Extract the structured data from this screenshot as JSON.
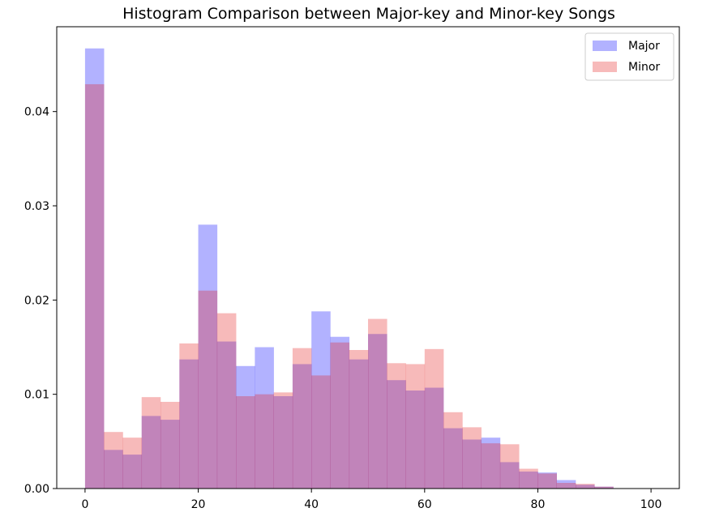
{
  "chart_data": {
    "type": "histogram",
    "title": "Histogram Comparison between Major-key and Minor-key Songs",
    "xlabel": "",
    "ylabel": "",
    "xlim": [
      -5,
      105
    ],
    "ylim": [
      0,
      0.049
    ],
    "x_ticks": [
      0,
      20,
      40,
      60,
      80,
      100
    ],
    "y_ticks": [
      0.0,
      0.01,
      0.02,
      0.03,
      0.04
    ],
    "y_tick_labels": [
      "0.00",
      "0.01",
      "0.02",
      "0.03",
      "0.04"
    ],
    "bin_edges": [
      0,
      3.33,
      6.67,
      10,
      13.33,
      16.67,
      20,
      23.33,
      26.67,
      30,
      33.33,
      36.67,
      40,
      43.33,
      46.67,
      50,
      53.33,
      56.67,
      60,
      63.33,
      66.67,
      70,
      73.33,
      76.67,
      80,
      83.33,
      86.67,
      90,
      93.33,
      96.67,
      100
    ],
    "legend_position": "top-right",
    "grid": false,
    "series": [
      {
        "name": "Major",
        "color": "#0000ff",
        "alpha": 0.3,
        "values": [
          0.0467,
          0.0041,
          0.0036,
          0.0077,
          0.0073,
          0.0137,
          0.028,
          0.0156,
          0.013,
          0.015,
          0.0098,
          0.0132,
          0.0188,
          0.0161,
          0.0137,
          0.0164,
          0.0115,
          0.0104,
          0.0107,
          0.0064,
          0.0052,
          0.0054,
          0.0028,
          0.0018,
          0.0017,
          0.0009,
          0.0004,
          0.0002,
          0.0,
          0.0
        ]
      },
      {
        "name": "Minor",
        "color": "#e31a1c",
        "alpha": 0.3,
        "values": [
          0.0429,
          0.006,
          0.0054,
          0.0097,
          0.0092,
          0.0154,
          0.021,
          0.0186,
          0.0098,
          0.01,
          0.0102,
          0.0149,
          0.012,
          0.0155,
          0.0147,
          0.018,
          0.0133,
          0.0132,
          0.0148,
          0.0081,
          0.0065,
          0.0048,
          0.0047,
          0.0021,
          0.0016,
          0.0006,
          0.0005,
          0.0002,
          0.0,
          0.0
        ]
      }
    ]
  }
}
